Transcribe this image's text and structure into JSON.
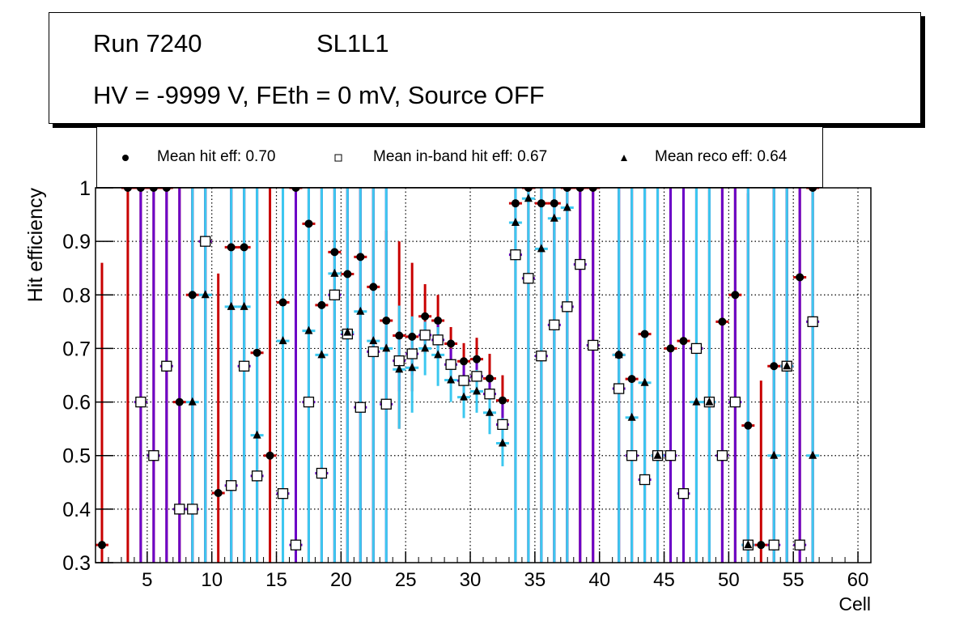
{
  "title": {
    "run": "Run 7240",
    "layer": "SL1L1",
    "conditions": "HV = -9999 V, FEth = 0 mV, Source OFF"
  },
  "legend": [
    {
      "marker": "filled-circle",
      "label": "Mean hit  eff: 0.70"
    },
    {
      "marker": "open-square",
      "label": "Mean in-band hit eff: 0.67"
    },
    {
      "marker": "filled-triangle",
      "label": "Mean reco eff: 0.64"
    }
  ],
  "colors": {
    "hit_err": "#c80000",
    "inband_err": "#6a00c8",
    "reco_err": "#3cc8f0",
    "marker": "#000000",
    "grid": "#000000"
  },
  "chart_data": {
    "type": "scatter",
    "title": "",
    "xlabel": "Cell",
    "ylabel": "Hit efficiency",
    "xlim": [
      1,
      61
    ],
    "ylim": [
      0.3,
      1.0
    ],
    "xticks": [
      5,
      10,
      15,
      20,
      25,
      30,
      35,
      40,
      45,
      50,
      55,
      60
    ],
    "yticks": [
      0.3,
      0.4,
      0.5,
      0.6,
      0.7,
      0.8,
      0.9,
      1.0
    ],
    "ytick_labels": [
      "0.3",
      "0.4",
      "0.5",
      "0.6",
      "0.7",
      "0.8",
      "0.9",
      "1"
    ],
    "grid": true,
    "legend_position": "top",
    "series": [
      {
        "name": "Mean hit eff",
        "marker": "circle",
        "points": [
          [
            1,
            0.333,
            0.3,
            0.86
          ],
          [
            3,
            1.0,
            0.3,
            1.0
          ],
          [
            4,
            1.0,
            0.3,
            1.0
          ],
          [
            5,
            1.0,
            0.3,
            1.0
          ],
          [
            6,
            1.0,
            0.3,
            1.0
          ],
          [
            7,
            0.6,
            0.3,
            1.0
          ],
          [
            8,
            0.8,
            0.3,
            1.0
          ],
          [
            9,
            0.9,
            0.3,
            1.0
          ],
          [
            10,
            0.43,
            0.3,
            0.84
          ],
          [
            11,
            0.889,
            0.3,
            1.0
          ],
          [
            12,
            0.889,
            0.3,
            1.0
          ],
          [
            13,
            0.692,
            0.3,
            1.0
          ],
          [
            14,
            0.5,
            0.3,
            1.0
          ],
          [
            15,
            0.786,
            0.3,
            1.0
          ],
          [
            16,
            1.0,
            0.3,
            1.0
          ],
          [
            17,
            0.933,
            0.3,
            1.0
          ],
          [
            18,
            0.781,
            0.3,
            1.0
          ],
          [
            19,
            0.88,
            0.3,
            1.0
          ],
          [
            20,
            0.839,
            0.3,
            1.0
          ],
          [
            21,
            0.871,
            0.3,
            1.0
          ],
          [
            22,
            0.815,
            0.3,
            1.0
          ],
          [
            23,
            0.752,
            0.5,
            0.92
          ],
          [
            24,
            0.724,
            0.55,
            0.9
          ],
          [
            25,
            0.722,
            0.62,
            0.86
          ],
          [
            26,
            0.76,
            0.69,
            0.82
          ],
          [
            27,
            0.752,
            0.7,
            0.8
          ],
          [
            28,
            0.709,
            0.67,
            0.74
          ],
          [
            29,
            0.676,
            0.64,
            0.71
          ],
          [
            30,
            0.68,
            0.64,
            0.72
          ],
          [
            31,
            0.644,
            0.6,
            0.69
          ],
          [
            32,
            0.603,
            0.55,
            0.65
          ],
          [
            33,
            0.971,
            0.3,
            1.0
          ],
          [
            34,
            1.0,
            0.3,
            1.0
          ],
          [
            35,
            0.971,
            0.3,
            1.0
          ],
          [
            36,
            0.971,
            0.3,
            1.0
          ],
          [
            37,
            1.0,
            0.3,
            1.0
          ],
          [
            38,
            1.0,
            0.3,
            1.0
          ],
          [
            39,
            1.0,
            0.3,
            1.0
          ],
          [
            41,
            0.688,
            0.3,
            1.0
          ],
          [
            42,
            0.643,
            0.3,
            1.0
          ],
          [
            43,
            0.727,
            0.3,
            1.0
          ],
          [
            44,
            0.5,
            0.3,
            1.0
          ],
          [
            45,
            0.7,
            0.3,
            1.0
          ],
          [
            46,
            0.714,
            0.3,
            1.0
          ],
          [
            47,
            0.7,
            0.3,
            1.0
          ],
          [
            48,
            0.6,
            0.3,
            1.0
          ],
          [
            49,
            0.75,
            0.3,
            1.0
          ],
          [
            50,
            0.8,
            0.3,
            1.0
          ],
          [
            51,
            0.556,
            0.3,
            0.99
          ],
          [
            52,
            0.333,
            0.3,
            0.64
          ],
          [
            53,
            0.667,
            0.3,
            1.0
          ],
          [
            54,
            0.667,
            0.3,
            1.0
          ],
          [
            55,
            0.833,
            0.3,
            1.0
          ],
          [
            56,
            1.0,
            0.3,
            1.0
          ]
        ]
      },
      {
        "name": "Mean in-band hit eff",
        "marker": "square",
        "points": [
          [
            4,
            0.6,
            0.3,
            1.0
          ],
          [
            5,
            0.5,
            0.3,
            1.0
          ],
          [
            6,
            0.667,
            0.3,
            1.0
          ],
          [
            7,
            0.4,
            0.3,
            1.0
          ],
          [
            8,
            0.4,
            0.3,
            1.0
          ],
          [
            9,
            0.9,
            0.3,
            1.0
          ],
          [
            11,
            0.444,
            0.3,
            1.0
          ],
          [
            12,
            0.667,
            0.3,
            1.0
          ],
          [
            13,
            0.462,
            0.3,
            1.0
          ],
          [
            15,
            0.429,
            0.3,
            1.0
          ],
          [
            16,
            0.333,
            0.3,
            1.0
          ],
          [
            17,
            0.6,
            0.3,
            1.0
          ],
          [
            18,
            0.467,
            0.3,
            1.0
          ],
          [
            19,
            0.8,
            0.3,
            1.0
          ],
          [
            20,
            0.727,
            0.3,
            1.0
          ],
          [
            21,
            0.59,
            0.3,
            1.0
          ],
          [
            22,
            0.694,
            0.3,
            1.0
          ],
          [
            23,
            0.596,
            0.3,
            1.0
          ],
          [
            24,
            0.677,
            0.62,
            0.72
          ],
          [
            25,
            0.69,
            0.65,
            0.73
          ],
          [
            26,
            0.725,
            0.7,
            0.75
          ],
          [
            27,
            0.716,
            0.68,
            0.75
          ],
          [
            28,
            0.67,
            0.64,
            0.7
          ],
          [
            29,
            0.64,
            0.61,
            0.67
          ],
          [
            30,
            0.648,
            0.61,
            0.68
          ],
          [
            31,
            0.615,
            0.58,
            0.65
          ],
          [
            32,
            0.558,
            0.52,
            0.6
          ],
          [
            33,
            0.875,
            0.3,
            1.0
          ],
          [
            34,
            0.831,
            0.3,
            1.0
          ],
          [
            35,
            0.686,
            0.3,
            1.0
          ],
          [
            36,
            0.744,
            0.3,
            1.0
          ],
          [
            37,
            0.778,
            0.3,
            1.0
          ],
          [
            38,
            0.857,
            0.3,
            1.0
          ],
          [
            39,
            0.706,
            0.3,
            1.0
          ],
          [
            41,
            0.625,
            0.3,
            1.0
          ],
          [
            42,
            0.5,
            0.3,
            1.0
          ],
          [
            43,
            0.455,
            0.3,
            1.0
          ],
          [
            44,
            0.5,
            0.3,
            1.0
          ],
          [
            45,
            0.5,
            0.3,
            1.0
          ],
          [
            46,
            0.429,
            0.3,
            1.0
          ],
          [
            47,
            0.7,
            0.3,
            1.0
          ],
          [
            48,
            0.6,
            0.3,
            1.0
          ],
          [
            49,
            0.5,
            0.3,
            1.0
          ],
          [
            50,
            0.6,
            0.3,
            1.0
          ],
          [
            51,
            0.333,
            0.3,
            1.0
          ],
          [
            53,
            0.333,
            0.3,
            1.0
          ],
          [
            54,
            0.667,
            0.3,
            1.0
          ],
          [
            55,
            0.333,
            0.3,
            1.0
          ],
          [
            56,
            0.75,
            0.3,
            1.0
          ]
        ]
      },
      {
        "name": "Mean reco eff",
        "marker": "triangle",
        "points": [
          [
            8,
            0.6,
            0.3,
            1.0
          ],
          [
            9,
            0.8,
            0.3,
            1.0
          ],
          [
            11,
            0.778,
            0.3,
            1.0
          ],
          [
            12,
            0.778,
            0.3,
            1.0
          ],
          [
            13,
            0.538,
            0.3,
            1.0
          ],
          [
            15,
            0.714,
            0.3,
            1.0
          ],
          [
            17,
            0.733,
            0.3,
            1.0
          ],
          [
            18,
            0.688,
            0.3,
            1.0
          ],
          [
            19,
            0.84,
            0.3,
            1.0
          ],
          [
            20,
            0.73,
            0.3,
            1.0
          ],
          [
            21,
            0.769,
            0.3,
            1.0
          ],
          [
            22,
            0.714,
            0.3,
            1.0
          ],
          [
            23,
            0.7,
            0.3,
            1.0
          ],
          [
            24,
            0.661,
            0.55,
            0.78
          ],
          [
            25,
            0.664,
            0.58,
            0.76
          ],
          [
            26,
            0.7,
            0.65,
            0.75
          ],
          [
            27,
            0.688,
            0.63,
            0.74
          ],
          [
            28,
            0.641,
            0.6,
            0.68
          ],
          [
            29,
            0.609,
            0.57,
            0.64
          ],
          [
            30,
            0.62,
            0.58,
            0.66
          ],
          [
            31,
            0.58,
            0.54,
            0.62
          ],
          [
            32,
            0.523,
            0.48,
            0.57
          ],
          [
            33,
            0.935,
            0.3,
            1.0
          ],
          [
            34,
            0.98,
            0.3,
            1.0
          ],
          [
            35,
            0.886,
            0.3,
            1.0
          ],
          [
            36,
            0.943,
            0.3,
            1.0
          ],
          [
            37,
            0.963,
            0.3,
            1.0
          ],
          [
            41,
            0.688,
            0.3,
            1.0
          ],
          [
            42,
            0.571,
            0.3,
            1.0
          ],
          [
            43,
            0.636,
            0.3,
            1.0
          ],
          [
            44,
            0.5,
            0.3,
            1.0
          ],
          [
            47,
            0.6,
            0.3,
            1.0
          ],
          [
            48,
            0.6,
            0.3,
            1.0
          ],
          [
            51,
            0.333,
            0.3,
            1.0
          ],
          [
            53,
            0.5,
            0.3,
            1.0
          ],
          [
            54,
            0.667,
            0.3,
            1.0
          ],
          [
            56,
            0.5,
            0.3,
            1.0
          ]
        ]
      }
    ]
  }
}
